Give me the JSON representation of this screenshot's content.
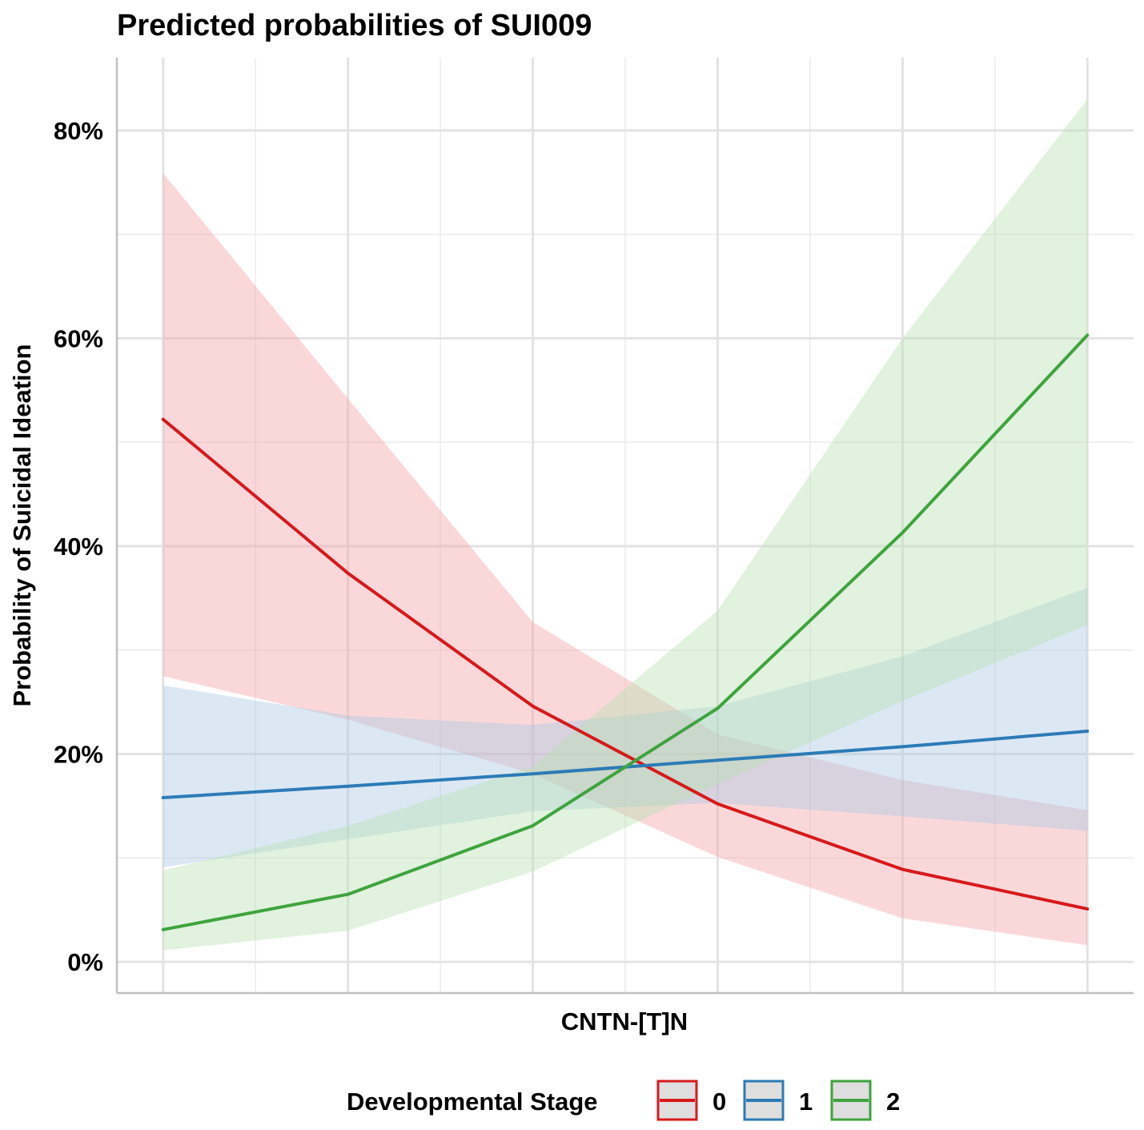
{
  "chart_data": {
    "type": "line",
    "title": "Predicted probabilities of SUI009",
    "xlabel": "CNTN-[T]N",
    "ylabel": "Probability of Suicidal Ideation",
    "x": [
      0,
      1,
      2,
      3,
      4,
      5
    ],
    "xlim": [
      -0.25,
      5.25
    ],
    "ylim": [
      -0.03,
      0.87
    ],
    "y_ticks": [
      0,
      0.2,
      0.4,
      0.6,
      0.8
    ],
    "y_tick_labels": [
      "0%",
      "20%",
      "40%",
      "60%",
      "80%"
    ],
    "grid": true,
    "legend": {
      "title": "Developmental Stage",
      "position": "bottom"
    },
    "series": [
      {
        "name": "0",
        "color": "#d7191c",
        "fill": "#f4a3a8",
        "values": [
          0.522,
          0.374,
          0.246,
          0.152,
          0.089,
          0.051
        ],
        "lower": [
          0.275,
          0.233,
          0.181,
          0.101,
          0.042,
          0.016
        ],
        "upper": [
          0.759,
          0.542,
          0.327,
          0.219,
          0.175,
          0.146
        ]
      },
      {
        "name": "1",
        "color": "#2c7bb6",
        "fill": "#a9c9e5",
        "values": [
          0.158,
          0.169,
          0.181,
          0.194,
          0.207,
          0.222
        ],
        "lower": [
          0.091,
          0.118,
          0.145,
          0.153,
          0.14,
          0.126
        ],
        "upper": [
          0.266,
          0.237,
          0.228,
          0.246,
          0.294,
          0.36
        ]
      },
      {
        "name": "2",
        "color": "#3fa33f",
        "fill": "#b7dfb0",
        "values": [
          0.031,
          0.065,
          0.131,
          0.244,
          0.413,
          0.603
        ],
        "lower": [
          0.011,
          0.03,
          0.087,
          0.171,
          0.251,
          0.324
        ],
        "upper": [
          0.088,
          0.131,
          0.188,
          0.338,
          0.6,
          0.83
        ]
      }
    ]
  }
}
